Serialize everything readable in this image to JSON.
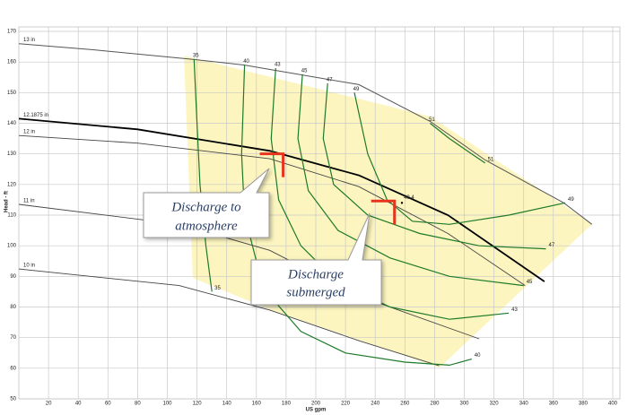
{
  "chart_data": {
    "type": "line",
    "x_label": "US gpm",
    "y_label": "Head - ft",
    "xlim": [
      0,
      400
    ],
    "ylim": [
      50,
      170
    ],
    "xticks": [
      20,
      40,
      60,
      80,
      100,
      120,
      140,
      160,
      180,
      200,
      220,
      240,
      260,
      280,
      300,
      320,
      340,
      360,
      380,
      400
    ],
    "yticks": [
      50,
      60,
      70,
      80,
      90,
      100,
      110,
      120,
      130,
      140,
      150,
      160,
      170
    ],
    "grid": true,
    "series": [
      {
        "name": "13 in",
        "kind": "impeller",
        "color": "#555555",
        "width": 1,
        "x": [
          0,
          50,
          118,
          152,
          229,
          277,
          314,
          367,
          386
        ],
        "values": [
          166,
          164,
          160.8,
          159,
          152.6,
          140.6,
          128,
          114,
          107
        ]
      },
      {
        "name": "12.1875 in",
        "kind": "impeller",
        "color": "#000000",
        "width": 1.8,
        "x": [
          0,
          80,
          169,
          229,
          289,
          354
        ],
        "values": [
          141.5,
          138,
          131,
          123,
          110,
          88.3
        ]
      },
      {
        "name": "12 in",
        "kind": "impeller",
        "color": "#444444",
        "width": 0.9,
        "x": [
          0,
          80,
          169,
          229,
          289,
          341
        ],
        "values": [
          136,
          133.5,
          128.4,
          119.3,
          104,
          87
        ]
      },
      {
        "name": "11 in",
        "kind": "impeller",
        "color": "#444444",
        "width": 0.9,
        "x": [
          0,
          108,
          169,
          229,
          310
        ],
        "values": [
          113.5,
          107,
          98.5,
          83.6,
          69.6
        ]
      },
      {
        "name": "10 in",
        "kind": "impeller",
        "color": "#444444",
        "width": 0.9,
        "x": [
          0,
          108,
          169,
          229,
          283
        ],
        "values": [
          92.4,
          87,
          79,
          69,
          60.8
        ]
      },
      {
        "name": "35",
        "kind": "efficiency",
        "color": "#1f7a2a",
        "width": 1.2,
        "x": [
          118,
          120,
          122,
          126,
          130
        ],
        "values": [
          161,
          140,
          120,
          100,
          85
        ]
      },
      {
        "name": "40",
        "kind": "efficiency",
        "color": "#1f7a2a",
        "width": 1.2,
        "x": [
          152,
          150,
          152,
          160,
          172,
          190,
          220,
          260,
          290,
          305
        ],
        "values": [
          159,
          130,
          110,
          95,
          82,
          72,
          65,
          62,
          61,
          63
        ]
      },
      {
        "name": "43",
        "kind": "efficiency",
        "color": "#1f7a2a",
        "width": 1.2,
        "x": [
          173,
          170,
          175,
          190,
          215,
          250,
          290,
          330
        ],
        "values": [
          158,
          135,
          115,
          100,
          88,
          80,
          76,
          78
        ]
      },
      {
        "name": "45",
        "kind": "efficiency",
        "color": "#1f7a2a",
        "width": 1.2,
        "x": [
          191,
          188,
          195,
          215,
          250,
          290,
          340
        ],
        "values": [
          156,
          135,
          118,
          105,
          96,
          90,
          87
        ]
      },
      {
        "name": "47",
        "kind": "efficiency",
        "color": "#1f7a2a",
        "width": 1.2,
        "x": [
          208,
          205,
          212,
          235,
          270,
          310,
          355
        ],
        "values": [
          153,
          135,
          120,
          110,
          104,
          100,
          99
        ]
      },
      {
        "name": "49",
        "kind": "efficiency",
        "color": "#1f7a2a",
        "width": 1.2,
        "x": [
          226,
          235,
          248,
          265,
          290,
          330,
          368
        ],
        "values": [
          150,
          130,
          115,
          108,
          107,
          110,
          114
        ]
      },
      {
        "name": "51",
        "kind": "efficiency",
        "color": "#1f7a2a",
        "width": 1.2,
        "x": [
          277,
          290,
          305,
          314
        ],
        "values": [
          140,
          135,
          130,
          127
        ]
      }
    ],
    "bep_label": "49.4",
    "bep": {
      "x": 258,
      "y": 114
    },
    "markers": [
      {
        "x": 178,
        "y": 130
      },
      {
        "x": 253,
        "y": 114.6
      }
    ],
    "marker_color": "#e8341c",
    "callouts": [
      [
        "Discharge to",
        "atmosphere"
      ],
      [
        "Discharge",
        "submerged"
      ]
    ]
  }
}
